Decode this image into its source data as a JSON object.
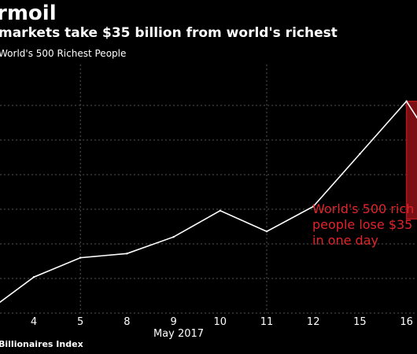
{
  "header": {
    "title": "rmoil",
    "subtitle": "markets take $35 billion from world's richest",
    "series_caption": "World's 500 Richest People"
  },
  "footer": {
    "source": "Billionaires Index"
  },
  "annotation": {
    "lines": [
      "World's 500 rich",
      "people lose $35",
      "in one day"
    ]
  },
  "colors": {
    "background": "#000000",
    "line": "#ffffff",
    "grid": "#555555",
    "highlight_fill": "#7a1014",
    "highlight_stroke": "#b0161c",
    "annotation_text": "#e0242b"
  },
  "chart_data": {
    "type": "line",
    "title": "",
    "xlabel": "May 2017",
    "ylabel": "",
    "categories": [
      "4",
      "5",
      "8",
      "9",
      "10",
      "11",
      "12",
      "15",
      "16"
    ],
    "x": [
      0,
      1,
      2,
      3,
      4,
      5,
      6,
      7,
      8
    ],
    "y": [
      2.6,
      4.0,
      4.3,
      5.5,
      7.4,
      5.9,
      7.7,
      11.5,
      15.3
    ],
    "y_start": 0.6,
    "y_end": 11.1,
    "ylim": [
      0,
      17.5
    ],
    "y_grid_values": [
      0,
      2.5,
      5,
      7.5,
      10,
      12.5,
      15
    ],
    "highlight": {
      "x_from": 8,
      "x_to": 8.5,
      "y_from": 6.8,
      "y_to": 15.3
    },
    "grid": true
  }
}
